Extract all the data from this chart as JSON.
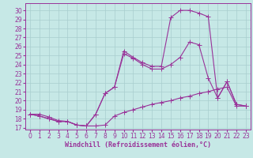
{
  "background_color": "#c6e8e6",
  "line_color": "#993399",
  "grid_color": "#a8cece",
  "xlabel": "Windchill (Refroidissement éolien,°C)",
  "xlim": [
    -0.5,
    23.5
  ],
  "ylim": [
    16.8,
    30.8
  ],
  "xticks": [
    0,
    1,
    2,
    3,
    4,
    5,
    6,
    7,
    8,
    9,
    10,
    11,
    12,
    13,
    14,
    15,
    16,
    17,
    18,
    19,
    20,
    21,
    22,
    23
  ],
  "yticks": [
    17,
    18,
    19,
    20,
    21,
    22,
    23,
    24,
    25,
    26,
    27,
    28,
    29,
    30
  ],
  "line1_x": [
    0,
    1,
    2,
    3,
    4,
    5,
    6,
    7,
    8,
    9,
    10,
    11,
    12,
    13,
    14,
    15,
    16,
    17,
    18,
    19,
    20,
    21,
    22,
    23
  ],
  "line1_y": [
    18.5,
    18.5,
    18.2,
    17.8,
    17.7,
    17.3,
    17.2,
    17.2,
    17.3,
    18.3,
    18.7,
    19.0,
    19.3,
    19.6,
    19.8,
    20.0,
    20.3,
    20.5,
    20.8,
    21.0,
    21.3,
    21.5,
    19.4,
    19.4
  ],
  "line2_x": [
    0,
    1,
    2,
    3,
    4,
    5,
    6,
    7,
    8,
    9,
    10,
    11,
    12,
    13,
    14,
    15,
    16,
    17,
    18,
    19,
    20,
    21,
    22,
    23
  ],
  "line2_y": [
    18.5,
    18.3,
    18.0,
    17.7,
    17.7,
    17.3,
    17.2,
    18.5,
    20.8,
    21.5,
    25.2,
    24.7,
    24.0,
    23.5,
    23.5,
    24.0,
    24.8,
    26.5,
    26.2,
    22.5,
    20.3,
    22.1,
    19.6,
    19.4
  ],
  "line3_x": [
    0,
    1,
    2,
    3,
    4,
    5,
    6,
    7,
    8,
    9,
    10,
    11,
    12,
    13,
    14,
    15,
    16,
    17,
    18,
    19,
    20,
    21,
    22,
    23
  ],
  "line3_y": [
    18.5,
    18.3,
    18.0,
    17.7,
    17.7,
    17.3,
    17.2,
    18.5,
    20.8,
    21.5,
    25.5,
    24.8,
    24.2,
    23.8,
    23.8,
    29.2,
    30.0,
    30.0,
    29.7,
    29.3,
    20.3,
    22.1,
    19.6,
    19.4
  ],
  "xlabel_fontsize": 6.0,
  "tick_fontsize": 5.5,
  "marker_size": 2.0,
  "line_width": 0.8
}
